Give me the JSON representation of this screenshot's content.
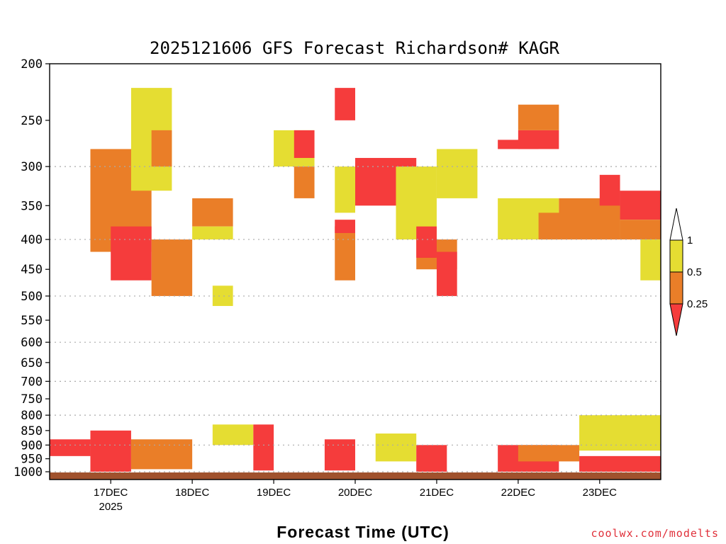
{
  "chart_data": {
    "type": "heatmap",
    "title": "2025121606 GFS Forecast Richardson# KAGR",
    "xlabel": "Forecast Time (UTC)",
    "ylabel": "",
    "y_axis": {
      "scale": "log-pressure",
      "inverted": true,
      "range": [
        1000,
        200
      ],
      "ticks": [
        200,
        250,
        300,
        350,
        400,
        450,
        500,
        550,
        600,
        650,
        700,
        750,
        800,
        850,
        900,
        950,
        1000
      ],
      "gridlines": [
        300,
        400,
        500,
        600,
        700,
        800,
        900,
        1000
      ]
    },
    "x_axis": {
      "range": [
        "2025-12-16 06",
        "2025-12-23 18"
      ],
      "ticks": [
        {
          "label": "17DEC",
          "sublabel": "2025",
          "time": "2025-12-17 00"
        },
        {
          "label": "18DEC",
          "sublabel": "",
          "time": "2025-12-18 00"
        },
        {
          "label": "19DEC",
          "sublabel": "",
          "time": "2025-12-19 00"
        },
        {
          "label": "20DEC",
          "sublabel": "",
          "time": "2025-12-20 00"
        },
        {
          "label": "21DEC",
          "sublabel": "",
          "time": "2025-12-21 00"
        },
        {
          "label": "22DEC",
          "sublabel": "",
          "time": "2025-12-22 00"
        },
        {
          "label": "23DEC",
          "sublabel": "",
          "time": "2025-12-23 00"
        }
      ]
    },
    "grid": true,
    "legend": {
      "placement": "right",
      "labels": [
        "1",
        "0.5",
        "0.25"
      ]
    },
    "color_scale": [
      {
        "range": "<0.25",
        "color": "#f53c3c"
      },
      {
        "range": "0.25-0.5",
        "color": "#ea7e28"
      },
      {
        "range": "0.5-1",
        "color": "#e5dd32"
      }
    ],
    "ground_color": "#a0522d",
    "approximate_regions": [
      {
        "t0": "2025-12-16 06",
        "t1": "2025-12-16 18",
        "p_top": 880,
        "p_bot": 940,
        "category": "<0.25"
      },
      {
        "t0": "2025-12-16 18",
        "t1": "2025-12-17 06",
        "p_top": 850,
        "p_bot": 1000,
        "category": "<0.25"
      },
      {
        "t0": "2025-12-17 06",
        "t1": "2025-12-18 00",
        "p_top": 880,
        "p_bot": 990,
        "category": "0.25-0.5"
      },
      {
        "t0": "2025-12-18 06",
        "t1": "2025-12-18 18",
        "p_top": 830,
        "p_bot": 900,
        "category": "0.5-1"
      },
      {
        "t0": "2025-12-18 18",
        "t1": "2025-12-19 00",
        "p_top": 830,
        "p_bot": 995,
        "category": "<0.25"
      },
      {
        "t0": "2025-12-19 15",
        "t1": "2025-12-20 00",
        "p_top": 880,
        "p_bot": 995,
        "category": "<0.25"
      },
      {
        "t0": "2025-12-20 06",
        "t1": "2025-12-20 18",
        "p_top": 860,
        "p_bot": 960,
        "category": "0.5-1"
      },
      {
        "t0": "2025-12-20 18",
        "t1": "2025-12-21 03",
        "p_top": 900,
        "p_bot": 1000,
        "category": "<0.25"
      },
      {
        "t0": "2025-12-21 18",
        "t1": "2025-12-22 12",
        "p_top": 900,
        "p_bot": 1000,
        "category": "<0.25"
      },
      {
        "t0": "2025-12-22 00",
        "t1": "2025-12-22 18",
        "p_top": 900,
        "p_bot": 960,
        "category": "0.25-0.5"
      },
      {
        "t0": "2025-12-22 18",
        "t1": "2025-12-23 18",
        "p_top": 940,
        "p_bot": 1000,
        "category": "<0.25"
      },
      {
        "t0": "2025-12-22 18",
        "t1": "2025-12-23 18",
        "p_top": 800,
        "p_bot": 920,
        "category": "0.5-1"
      },
      {
        "t0": "2025-12-16 18",
        "t1": "2025-12-17 12",
        "p_top": 280,
        "p_bot": 420,
        "category": "0.25-0.5"
      },
      {
        "t0": "2025-12-17 00",
        "t1": "2025-12-17 12",
        "p_top": 380,
        "p_bot": 470,
        "category": "<0.25"
      },
      {
        "t0": "2025-12-17 06",
        "t1": "2025-12-17 18",
        "p_top": 220,
        "p_bot": 330,
        "category": "0.5-1"
      },
      {
        "t0": "2025-12-17 12",
        "t1": "2025-12-17 18",
        "p_top": 260,
        "p_bot": 300,
        "category": "0.25-0.5"
      },
      {
        "t0": "2025-12-17 12",
        "t1": "2025-12-18 00",
        "p_top": 400,
        "p_bot": 500,
        "category": "0.25-0.5"
      },
      {
        "t0": "2025-12-18 00",
        "t1": "2025-12-18 12",
        "p_top": 340,
        "p_bot": 380,
        "category": "0.25-0.5"
      },
      {
        "t0": "2025-12-18 00",
        "t1": "2025-12-18 12",
        "p_top": 380,
        "p_bot": 400,
        "category": "0.5-1"
      },
      {
        "t0": "2025-12-18 06",
        "t1": "2025-12-18 12",
        "p_top": 480,
        "p_bot": 520,
        "category": "0.5-1"
      },
      {
        "t0": "2025-12-19 00",
        "t1": "2025-12-19 12",
        "p_top": 260,
        "p_bot": 300,
        "category": "0.5-1"
      },
      {
        "t0": "2025-12-19 06",
        "t1": "2025-12-19 12",
        "p_top": 260,
        "p_bot": 290,
        "category": "<0.25"
      },
      {
        "t0": "2025-12-19 06",
        "t1": "2025-12-19 12",
        "p_top": 300,
        "p_bot": 340,
        "category": "0.25-0.5"
      },
      {
        "t0": "2025-12-19 18",
        "t1": "2025-12-20 00",
        "p_top": 220,
        "p_bot": 250,
        "category": "<0.25"
      },
      {
        "t0": "2025-12-19 18",
        "t1": "2025-12-20 00",
        "p_top": 380,
        "p_bot": 470,
        "category": "0.25-0.5"
      },
      {
        "t0": "2025-12-19 18",
        "t1": "2025-12-20 00",
        "p_top": 370,
        "p_bot": 390,
        "category": "<0.25"
      },
      {
        "t0": "2025-12-19 18",
        "t1": "2025-12-20 00",
        "p_top": 300,
        "p_bot": 360,
        "category": "0.5-1"
      },
      {
        "t0": "2025-12-20 00",
        "t1": "2025-12-20 18",
        "p_top": 290,
        "p_bot": 350,
        "category": "<0.25"
      },
      {
        "t0": "2025-12-20 12",
        "t1": "2025-12-21 00",
        "p_top": 300,
        "p_bot": 400,
        "category": "0.5-1"
      },
      {
        "t0": "2025-12-20 18",
        "t1": "2025-12-21 06",
        "p_top": 400,
        "p_bot": 450,
        "category": "0.25-0.5"
      },
      {
        "t0": "2025-12-20 18",
        "t1": "2025-12-21 00",
        "p_top": 380,
        "p_bot": 430,
        "category": "<0.25"
      },
      {
        "t0": "2025-12-21 00",
        "t1": "2025-12-21 06",
        "p_top": 420,
        "p_bot": 500,
        "category": "<0.25"
      },
      {
        "t0": "2025-12-21 00",
        "t1": "2025-12-21 12",
        "p_top": 280,
        "p_bot": 340,
        "category": "0.5-1"
      },
      {
        "t0": "2025-12-21 18",
        "t1": "2025-12-22 12",
        "p_top": 340,
        "p_bot": 400,
        "category": "0.5-1"
      },
      {
        "t0": "2025-12-21 18",
        "t1": "2025-12-22 06",
        "p_top": 270,
        "p_bot": 280,
        "category": "<0.25"
      },
      {
        "t0": "2025-12-22 00",
        "t1": "2025-12-22 12",
        "p_top": 260,
        "p_bot": 280,
        "category": "<0.25"
      },
      {
        "t0": "2025-12-22 00",
        "t1": "2025-12-22 12",
        "p_top": 235,
        "p_bot": 260,
        "category": "0.25-0.5"
      },
      {
        "t0": "2025-12-22 06",
        "t1": "2025-12-23 06",
        "p_top": 360,
        "p_bot": 400,
        "category": "0.25-0.5"
      },
      {
        "t0": "2025-12-22 12",
        "t1": "2025-12-23 06",
        "p_top": 340,
        "p_bot": 370,
        "category": "0.25-0.5"
      },
      {
        "t0": "2025-12-23 00",
        "t1": "2025-12-23 06",
        "p_top": 310,
        "p_bot": 350,
        "category": "<0.25"
      },
      {
        "t0": "2025-12-23 06",
        "t1": "2025-12-23 18",
        "p_top": 330,
        "p_bot": 370,
        "category": "<0.25"
      },
      {
        "t0": "2025-12-23 06",
        "t1": "2025-12-23 18",
        "p_top": 370,
        "p_bot": 400,
        "category": "0.25-0.5"
      },
      {
        "t0": "2025-12-23 12",
        "t1": "2025-12-23 18",
        "p_top": 400,
        "p_bot": 470,
        "category": "0.5-1"
      }
    ]
  },
  "credit": "coolwx.com/modelts"
}
